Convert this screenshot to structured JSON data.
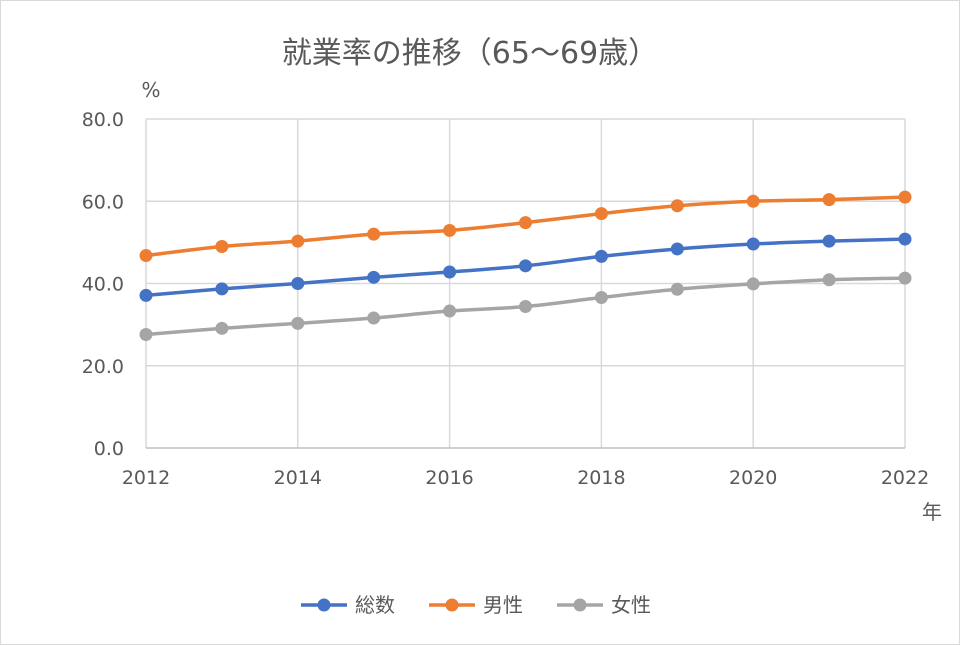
{
  "chart_data": {
    "type": "line",
    "title": "就業率の推移（65～69歳）",
    "ylabel": "%",
    "xlabel": "年",
    "ylim": [
      0,
      80
    ],
    "yticks": [
      "0.0",
      "20.0",
      "40.0",
      "60.0",
      "80.0"
    ],
    "xlim": [
      2012,
      2022
    ],
    "xticks": [
      "2012",
      "2014",
      "2016",
      "2018",
      "2020",
      "2022"
    ],
    "x": [
      2012,
      2013,
      2014,
      2015,
      2016,
      2017,
      2018,
      2019,
      2020,
      2021,
      2022
    ],
    "grid": true,
    "legend_position": "bottom",
    "series": [
      {
        "name": "総数",
        "color": "#4472C4",
        "values": [
          37.1,
          38.7,
          40.0,
          41.5,
          42.8,
          44.3,
          46.6,
          48.4,
          49.6,
          50.3,
          50.8
        ]
      },
      {
        "name": "男性",
        "color": "#ED7D31",
        "values": [
          46.8,
          49.0,
          50.3,
          52.0,
          52.9,
          54.8,
          57.0,
          58.9,
          60.0,
          60.4,
          61.0
        ]
      },
      {
        "name": "女性",
        "color": "#A5A5A5",
        "values": [
          27.6,
          29.1,
          30.3,
          31.6,
          33.3,
          34.4,
          36.6,
          38.6,
          39.9,
          40.9,
          41.3
        ]
      }
    ]
  }
}
